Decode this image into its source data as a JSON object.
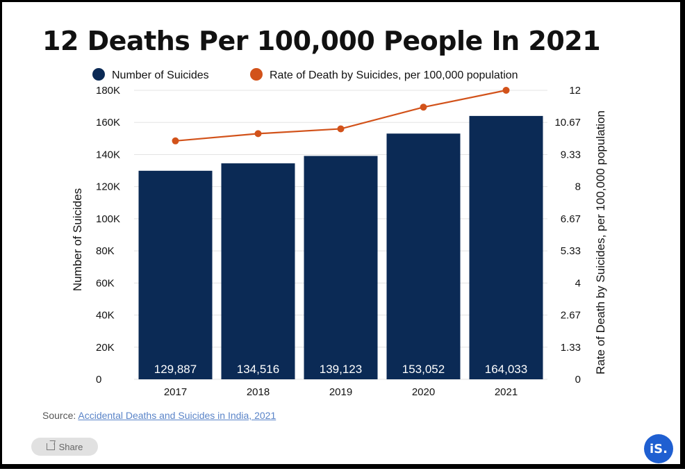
{
  "title": "12 Deaths Per 100,000 People In 2021",
  "source": {
    "label": "Source:",
    "link_text": "Accidental Deaths and Suicides in India, 2021"
  },
  "share_label": "Share",
  "logo_text": "iS.",
  "colors": {
    "bar": "#0b2a55",
    "line": "#d2521a",
    "logo": "#1f5fd1"
  },
  "chart_data": {
    "type": "bar",
    "categories": [
      "2017",
      "2018",
      "2019",
      "2020",
      "2021"
    ],
    "series": [
      {
        "name": "Number of Suicides",
        "type": "bar",
        "axis": "left",
        "values": [
          129887,
          134516,
          139123,
          153052,
          164033
        ],
        "labels": [
          "129,887",
          "134,516",
          "139,123",
          "153,052",
          "164,033"
        ]
      },
      {
        "name": "Rate of Death by Suicides, per 100,000 population",
        "type": "line",
        "axis": "right",
        "values": [
          9.9,
          10.2,
          10.4,
          11.3,
          12.0
        ]
      }
    ],
    "ylabel": "Number of Suicides",
    "y2label": "Rate of Death by Suicides, per 100,000 population",
    "ylim": [
      0,
      180000
    ],
    "y2lim": [
      0,
      12
    ],
    "yticks": [
      "0",
      "20K",
      "40K",
      "60K",
      "80K",
      "100K",
      "120K",
      "140K",
      "160K",
      "180K"
    ],
    "y2ticks": [
      "0",
      "1.33",
      "2.67",
      "4",
      "5.33",
      "6.67",
      "8",
      "9.33",
      "10.67",
      "12"
    ],
    "legend": "top",
    "grid": "horizontal"
  }
}
